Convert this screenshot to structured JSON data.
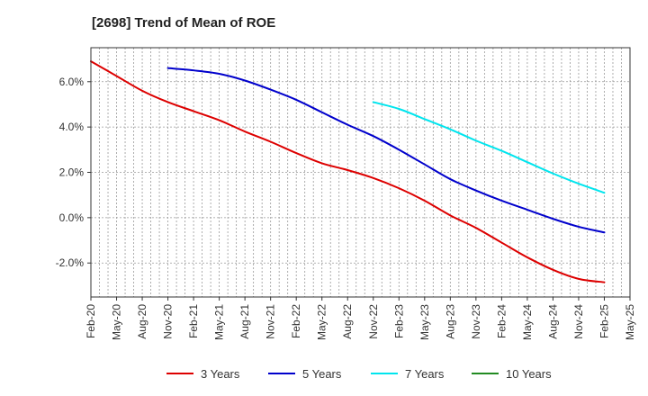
{
  "chart_data": {
    "type": "line",
    "title": "[2698]  Trend of Mean of ROE",
    "xlabel": "",
    "ylabel": "",
    "x_tick_labels": [
      "Feb-20",
      "May-20",
      "Aug-20",
      "Nov-20",
      "Feb-21",
      "May-21",
      "Aug-21",
      "Nov-21",
      "Feb-22",
      "May-22",
      "Aug-22",
      "Nov-22",
      "Feb-23",
      "May-23",
      "Aug-23",
      "Nov-23",
      "Feb-24",
      "May-24",
      "Aug-24",
      "Nov-24",
      "Feb-25",
      "May-25"
    ],
    "y_ticks": [
      -2.0,
      0.0,
      2.0,
      4.0,
      6.0
    ],
    "y_tick_labels": [
      "-2.0%",
      "0.0%",
      "2.0%",
      "4.0%",
      "6.0%"
    ],
    "ylim": [
      -3.5,
      7.5
    ],
    "grid": true,
    "legend_position": "bottom",
    "series": [
      {
        "name": "3 Years",
        "color": "#dd0000",
        "points": [
          [
            "Feb-20",
            6.9
          ],
          [
            "May-20",
            6.25
          ],
          [
            "Aug-20",
            5.6
          ],
          [
            "Nov-20",
            5.1
          ],
          [
            "Feb-21",
            4.7
          ],
          [
            "May-21",
            4.3
          ],
          [
            "Aug-21",
            3.8
          ],
          [
            "Nov-21",
            3.35
          ],
          [
            "Feb-22",
            2.85
          ],
          [
            "May-22",
            2.4
          ],
          [
            "Aug-22",
            2.1
          ],
          [
            "Nov-22",
            1.75
          ],
          [
            "Feb-23",
            1.3
          ],
          [
            "May-23",
            0.75
          ],
          [
            "Aug-23",
            0.1
          ],
          [
            "Nov-23",
            -0.45
          ],
          [
            "Feb-24",
            -1.1
          ],
          [
            "May-24",
            -1.75
          ],
          [
            "Aug-24",
            -2.3
          ],
          [
            "Nov-24",
            -2.7
          ],
          [
            "Feb-25",
            -2.85
          ]
        ]
      },
      {
        "name": "5 Years",
        "color": "#0000cc",
        "points": [
          [
            "Nov-20",
            6.6
          ],
          [
            "Feb-21",
            6.5
          ],
          [
            "May-21",
            6.35
          ],
          [
            "Aug-21",
            6.05
          ],
          [
            "Nov-21",
            5.65
          ],
          [
            "Feb-22",
            5.2
          ],
          [
            "May-22",
            4.65
          ],
          [
            "Aug-22",
            4.1
          ],
          [
            "Nov-22",
            3.6
          ],
          [
            "Feb-23",
            3.0
          ],
          [
            "May-23",
            2.35
          ],
          [
            "Aug-23",
            1.7
          ],
          [
            "Nov-23",
            1.2
          ],
          [
            "Feb-24",
            0.75
          ],
          [
            "May-24",
            0.35
          ],
          [
            "Aug-24",
            -0.05
          ],
          [
            "Nov-24",
            -0.4
          ],
          [
            "Feb-25",
            -0.65
          ]
        ]
      },
      {
        "name": "7 Years",
        "color": "#00e5ee",
        "points": [
          [
            "Nov-22",
            5.1
          ],
          [
            "Feb-23",
            4.8
          ],
          [
            "May-23",
            4.35
          ],
          [
            "Aug-23",
            3.9
          ],
          [
            "Nov-23",
            3.4
          ],
          [
            "Feb-24",
            2.95
          ],
          [
            "May-24",
            2.45
          ],
          [
            "Aug-24",
            1.95
          ],
          [
            "Nov-24",
            1.5
          ],
          [
            "Feb-25",
            1.1
          ]
        ]
      },
      {
        "name": "10 Years",
        "color": "#228b22",
        "points": []
      }
    ]
  }
}
